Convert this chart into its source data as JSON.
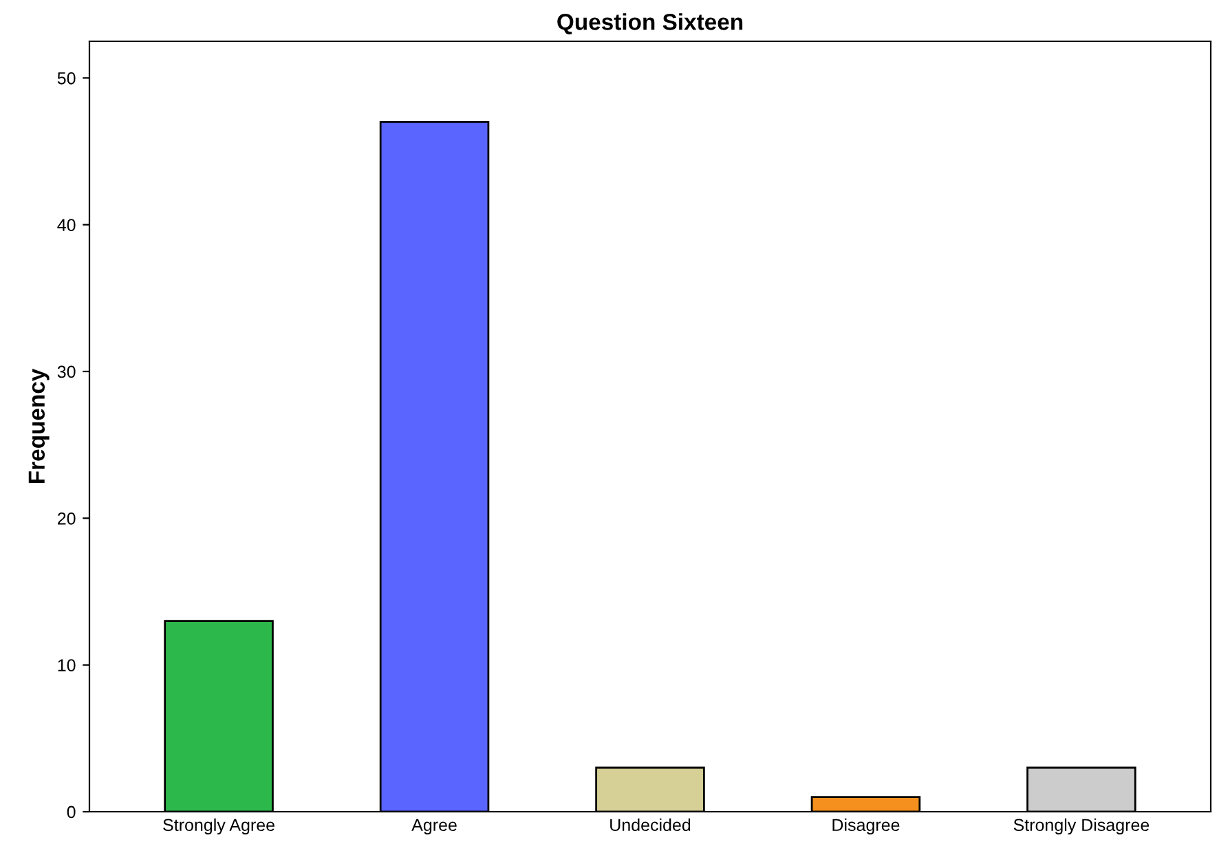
{
  "chart_data": {
    "type": "bar",
    "title": "Question Sixteen",
    "ylabel": "Frequency",
    "categories": [
      "Strongly Agree",
      "Agree",
      "Undecided",
      "Disagree",
      "Strongly Disagree"
    ],
    "values": [
      13,
      47,
      3,
      1,
      3
    ],
    "colors": [
      "#2db84b",
      "#5a64ff",
      "#d6cf96",
      "#f5901e",
      "#cccccc"
    ],
    "ylim": [
      0,
      52.5
    ],
    "yticks": [
      0,
      10,
      20,
      30,
      40,
      50
    ],
    "grid": false,
    "legend": false
  }
}
